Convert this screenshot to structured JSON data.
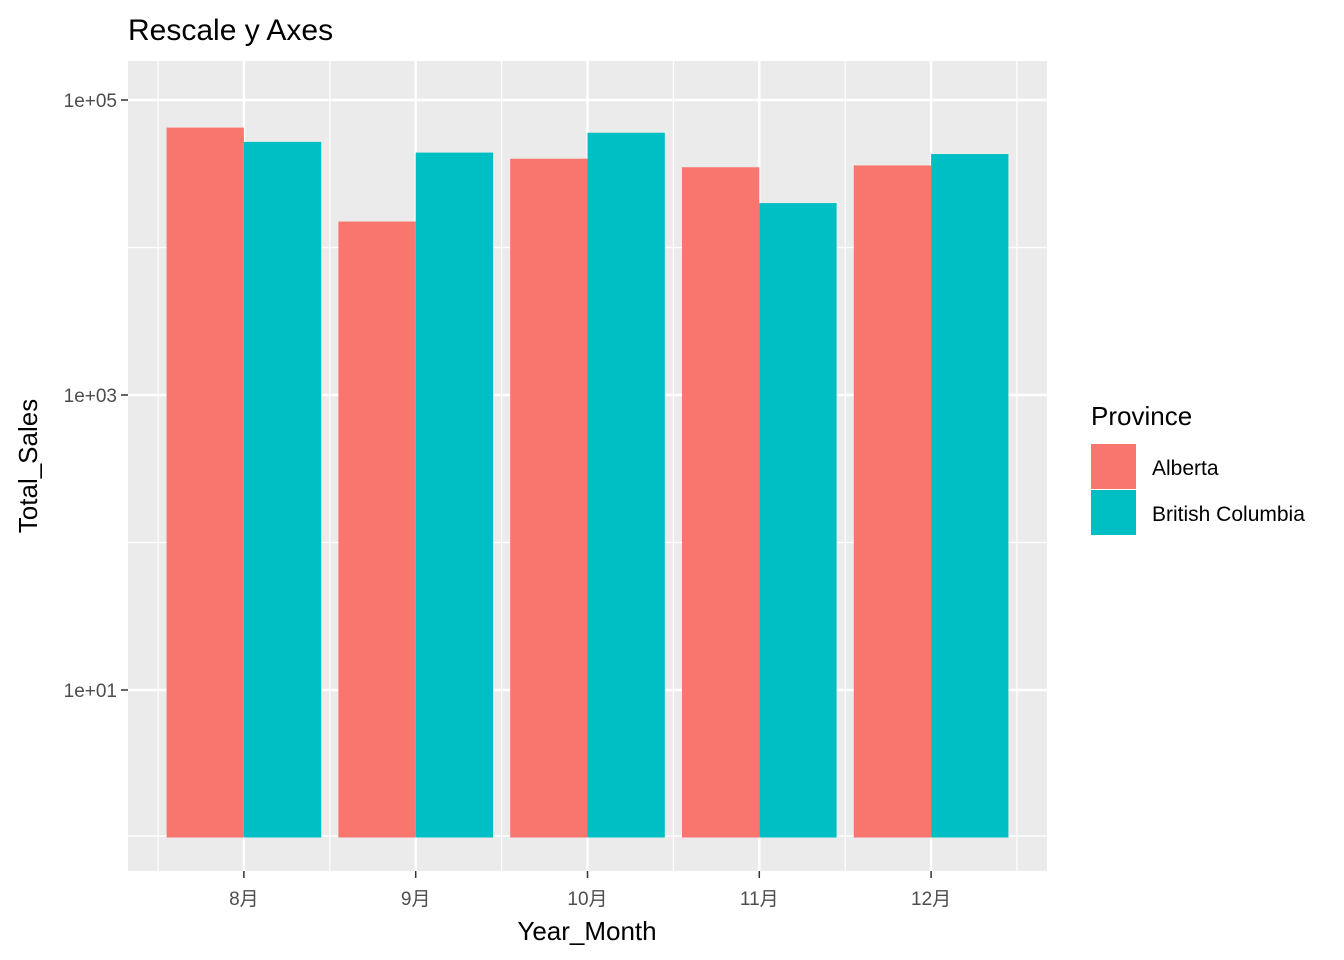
{
  "chart_data": {
    "type": "bar",
    "title": "Rescale y Axes",
    "xlabel": "Year_Month",
    "ylabel": "Total_Sales",
    "y_scale": "log10",
    "ylim": [
      0.9,
      150000
    ],
    "y_ticks": [
      {
        "value": 100000,
        "label": "1e+05"
      },
      {
        "value": 1000,
        "label": "1e+03"
      },
      {
        "value": 10,
        "label": "1e+01"
      }
    ],
    "categories": [
      "8月",
      "9月",
      "10月",
      "11月",
      "12月"
    ],
    "series": [
      {
        "name": "Alberta",
        "color": "#F8766D",
        "values": [
          65000,
          15000,
          40000,
          35000,
          36000
        ]
      },
      {
        "name": "British Columbia",
        "color": "#00BFC4",
        "values": [
          52000,
          44000,
          60000,
          20000,
          43000
        ]
      }
    ],
    "bar_base": 1,
    "legend": {
      "title": "Province",
      "position": "right"
    },
    "grid": true,
    "panel_background": "#EBEBEB",
    "grid_color": "#FFFFFF"
  }
}
